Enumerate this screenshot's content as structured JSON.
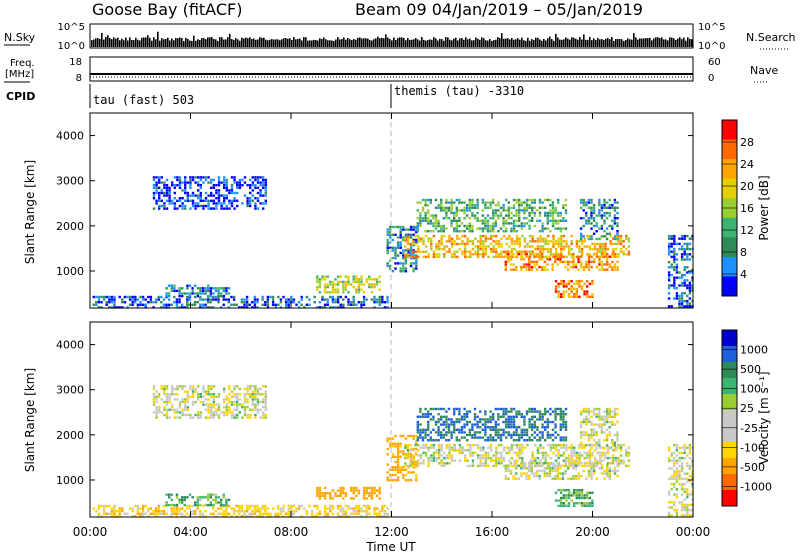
{
  "header": {
    "station": "Goose Bay (fitACF)",
    "beam_date": "Beam 09  04/Jan/2019 – 05/Jan/2019"
  },
  "strips": {
    "nsky_label": "N.Sky",
    "nsky_ticks": [
      "10^5",
      "10^0"
    ],
    "nsky_right_ticks": [
      "10^5",
      "10^0"
    ],
    "nsearch_label": "N.Search",
    "freq_label": "Freq.",
    "freq_unit": "[MHz]",
    "freq_ticks": [
      "18",
      "8"
    ],
    "nave_ticks": [
      "60",
      "0"
    ],
    "nave_label": "Nave",
    "cpid_label": "CPID",
    "cpid_modes": [
      {
        "start_hour": 0,
        "text": "tau (fast) 503"
      },
      {
        "start_hour": 12,
        "text": "themis (tau) -3310"
      }
    ]
  },
  "power_colorbar": {
    "label": "Power [dB]",
    "ticks": [
      "28",
      "24",
      "20",
      "16",
      "12",
      "8",
      "4"
    ],
    "colors": [
      "#ff0000",
      "#ff6a00",
      "#ffa500",
      "#e6cf00",
      "#9acd32",
      "#3cb371",
      "#2e8b57",
      "#1e90ff",
      "#0000ff"
    ]
  },
  "velocity_colorbar": {
    "label": "Velocity [m s⁻¹]",
    "ticks": [
      "1000",
      "500",
      "100",
      "25",
      "-25",
      "-100",
      "-500",
      "-1000"
    ],
    "colors": [
      "#0000cd",
      "#1c5fd8",
      "#2e8b57",
      "#3cb371",
      "#9acd32",
      "#c8c8c8",
      "#c8c8c8",
      "#ffd400",
      "#ffa500",
      "#ff6a00",
      "#ff0000"
    ]
  },
  "axes": {
    "ylabel": "Slant Range [km]",
    "xlabel": "Time UT",
    "yticks": [
      "4000",
      "3000",
      "2000",
      "1000"
    ],
    "xticks": [
      "00:00",
      "04:00",
      "08:00",
      "12:00",
      "16:00",
      "20:00",
      "00:00"
    ]
  },
  "chart_data": [
    {
      "type": "heatmap",
      "title": "Power",
      "x_range_hours": [
        0,
        24
      ],
      "y_range_km": [
        180,
        4500
      ],
      "colorbar_label": "Power [dB]",
      "colorbar_ticks": [
        28,
        24,
        20,
        16,
        12,
        8,
        4
      ],
      "regions": [
        {
          "t": [
            0.1,
            11.8
          ],
          "r": [
            180,
            450
          ],
          "dB": 8
        },
        {
          "t": [
            3.0,
            5.5
          ],
          "r": [
            450,
            700
          ],
          "dB": 10
        },
        {
          "t": [
            9.0,
            11.5
          ],
          "r": [
            500,
            900
          ],
          "dB": 18
        },
        {
          "t": [
            2.5,
            7.0
          ],
          "r": [
            2400,
            3100
          ],
          "dB": 6
        },
        {
          "t": [
            11.8,
            13.0
          ],
          "r": [
            1000,
            2000
          ],
          "dB": 10
        },
        {
          "t": [
            12.5,
            21.5
          ],
          "r": [
            1300,
            1800
          ],
          "dB": 22
        },
        {
          "t": [
            13.0,
            19.0
          ],
          "r": [
            1900,
            2600
          ],
          "dB": 14
        },
        {
          "t": [
            16.5,
            21.0
          ],
          "r": [
            1000,
            1400
          ],
          "dB": 24
        },
        {
          "t": [
            18.5,
            20.0
          ],
          "r": [
            400,
            800
          ],
          "dB": 26
        },
        {
          "t": [
            19.5,
            21.0
          ],
          "r": [
            1700,
            2600
          ],
          "dB": 10
        },
        {
          "t": [
            23.0,
            24.0
          ],
          "r": [
            200,
            1800
          ],
          "dB": 8
        }
      ]
    },
    {
      "type": "heatmap",
      "title": "Velocity",
      "x_range_hours": [
        0,
        24
      ],
      "y_range_km": [
        180,
        4500
      ],
      "colorbar_label": "Velocity [m s⁻¹]",
      "colorbar_ticks": [
        1000,
        500,
        100,
        25,
        -25,
        -100,
        -500,
        -1000
      ],
      "regions": [
        {
          "t": [
            0.1,
            11.8
          ],
          "r": [
            180,
            450
          ],
          "v": -60
        },
        {
          "t": [
            3.0,
            5.5
          ],
          "r": [
            450,
            700
          ],
          "v": 80
        },
        {
          "t": [
            9.0,
            11.5
          ],
          "r": [
            600,
            850
          ],
          "v": -200
        },
        {
          "t": [
            2.5,
            7.0
          ],
          "r": [
            2400,
            3100
          ],
          "v": 0
        },
        {
          "t": [
            11.8,
            13.0
          ],
          "r": [
            1000,
            2000
          ],
          "v": -150
        },
        {
          "t": [
            12.5,
            21.5
          ],
          "r": [
            1300,
            1800
          ],
          "v": 0
        },
        {
          "t": [
            13.0,
            19.0
          ],
          "r": [
            1900,
            2600
          ],
          "v": 300
        },
        {
          "t": [
            16.5,
            21.0
          ],
          "r": [
            1000,
            1400
          ],
          "v": 0
        },
        {
          "t": [
            18.5,
            20.0
          ],
          "r": [
            400,
            800
          ],
          "v": 80
        },
        {
          "t": [
            19.5,
            21.0
          ],
          "r": [
            1700,
            2600
          ],
          "v": 0
        },
        {
          "t": [
            23.0,
            24.0
          ],
          "r": [
            200,
            1800
          ],
          "v": 0
        }
      ]
    }
  ]
}
